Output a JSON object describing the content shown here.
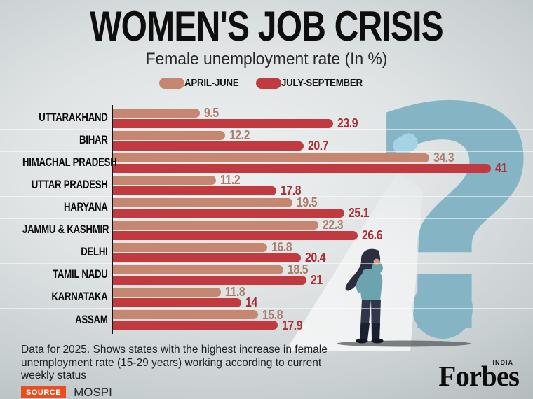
{
  "chart_data": {
    "type": "bar",
    "orientation": "horizontal",
    "title": "WOMEN'S JOB CRISIS",
    "subtitle": "Female unemployment rate (In %)",
    "legend_position": "top",
    "grid": false,
    "xlim": [
      0,
      41
    ],
    "categories": [
      "UTTARAKHAND",
      "BIHAR",
      "HIMACHAL PRADESH",
      "UTTAR PRADESH",
      "HARYANA",
      "JAMMU & KASHMIR",
      "DELHI",
      "TAMIL NADU",
      "KARNATAKA",
      "ASSAM"
    ],
    "series": [
      {
        "name": "APRIL-JUNE",
        "color": "#c5876f",
        "label_color": "#ad7b69",
        "values": [
          9.5,
          12.2,
          34.3,
          11.2,
          19.5,
          22.3,
          16.8,
          18.5,
          11.8,
          15.8
        ]
      },
      {
        "name": "JULY-SEPTEMBER",
        "color": "#c03a40",
        "label_color": "#a92f35",
        "values": [
          23.9,
          20.7,
          41,
          17.8,
          25.1,
          26.6,
          20.4,
          21,
          14,
          17.9
        ]
      }
    ]
  },
  "footer": {
    "note": "Data for 2025. Shows states with the highest increase in female unemployment rate (15-29 years) working according to current weekly status",
    "source_label": "SOURCE",
    "source_value": "MOSPI"
  },
  "branding": {
    "logo": "Forbes",
    "logo_sub": "INDIA"
  },
  "illustration": {
    "question_mark": "?",
    "question_color": "#85b4c5",
    "highlight_color": "#a5d3e6"
  }
}
